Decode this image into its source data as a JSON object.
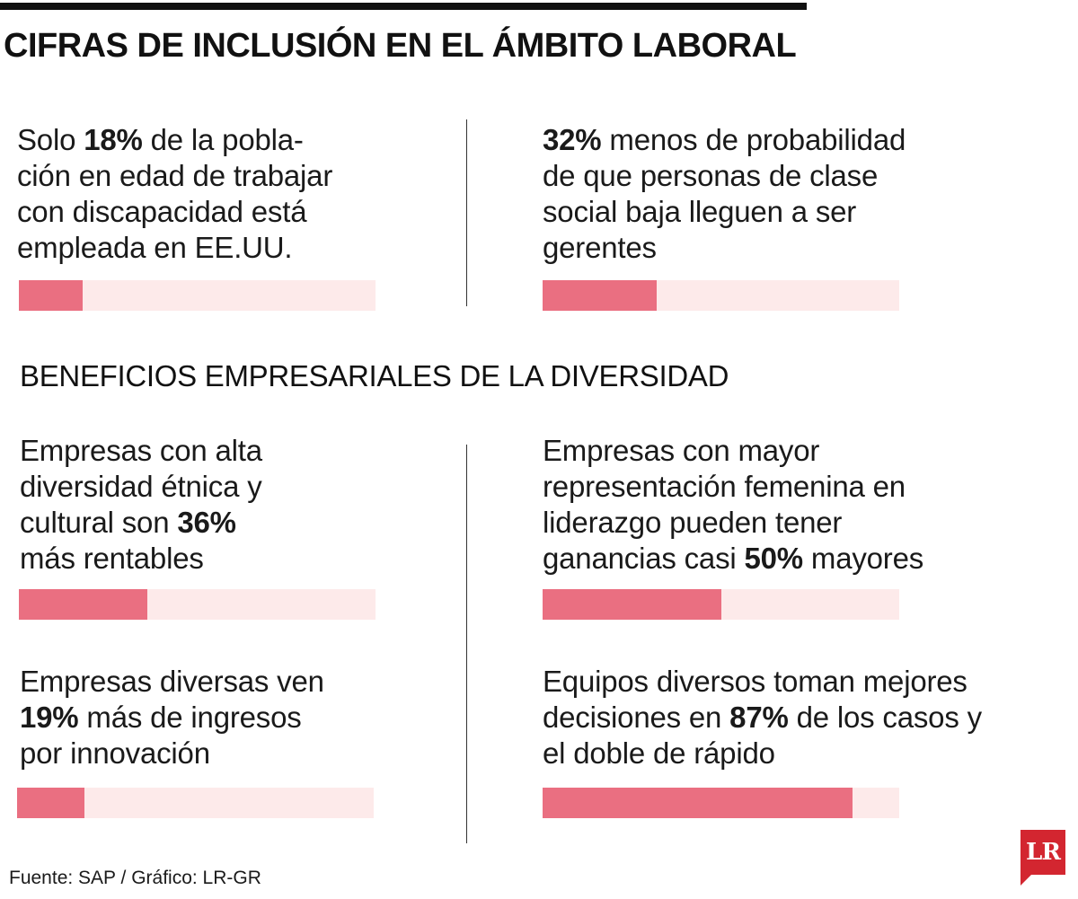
{
  "title": "CIFRAS DE INCLUSIÓN EN EL ÁMBITO LABORAL",
  "subtitle": "BENEFICIOS EMPRESARIALES DE LA DIVERSIDAD",
  "source": "Fuente: SAP / Gráfico: LR-GR",
  "logo_text": "LR",
  "colors": {
    "bar_fill": "#ea6f81",
    "bar_track": "#fdeaea",
    "logo": "#d32630"
  },
  "chart_data": {
    "type": "bar",
    "title": "CIFRAS DE INCLUSIÓN EN EL ÁMBITO LABORAL",
    "xlim": [
      0,
      100
    ],
    "unit": "%",
    "stats": [
      {
        "section": "CIFRAS DE INCLUSIÓN EN EL ÁMBITO LABORAL",
        "value": 18,
        "lines": [
          [
            "Solo ",
            "18%",
            " de la pobla-"
          ],
          [
            "ción en edad de trabajar",
            "",
            ""
          ],
          [
            "con discapacidad está",
            "",
            ""
          ],
          [
            "empleada en EE.UU.",
            "",
            ""
          ]
        ]
      },
      {
        "section": "CIFRAS DE INCLUSIÓN EN EL ÁMBITO LABORAL",
        "value": 32,
        "lines": [
          [
            "",
            "32%",
            " menos de probabilidad"
          ],
          [
            "de que personas de clase",
            "",
            ""
          ],
          [
            "social baja lleguen a ser",
            "",
            ""
          ],
          [
            "gerentes",
            "",
            ""
          ]
        ]
      },
      {
        "section": "BENEFICIOS EMPRESARIALES DE LA DIVERSIDAD",
        "value": 36,
        "lines": [
          [
            "Empresas con alta",
            "",
            ""
          ],
          [
            "diversidad étnica y",
            "",
            ""
          ],
          [
            "cultural son ",
            "36%",
            ""
          ],
          [
            "más rentables",
            "",
            ""
          ]
        ]
      },
      {
        "section": "BENEFICIOS EMPRESARIALES DE LA DIVERSIDAD",
        "value": 50,
        "lines": [
          [
            "Empresas con mayor",
            "",
            ""
          ],
          [
            "representación femenina en",
            "",
            ""
          ],
          [
            "liderazgo pueden tener",
            "",
            ""
          ],
          [
            "ganancias casi ",
            "50%",
            " mayores"
          ]
        ]
      },
      {
        "section": "BENEFICIOS EMPRESARIALES DE LA DIVERSIDAD",
        "value": 19,
        "lines": [
          [
            "Empresas diversas ven",
            "",
            ""
          ],
          [
            "",
            "19%",
            " más de ingresos"
          ],
          [
            "por innovación",
            "",
            ""
          ]
        ]
      },
      {
        "section": "BENEFICIOS EMPRESARIALES DE LA DIVERSIDAD",
        "value": 87,
        "lines": [
          [
            "Equipos diversos toman mejores",
            "",
            ""
          ],
          [
            "decisiones en ",
            "87%",
            " de los casos y"
          ],
          [
            "el doble de rápido",
            "",
            ""
          ]
        ]
      }
    ]
  }
}
